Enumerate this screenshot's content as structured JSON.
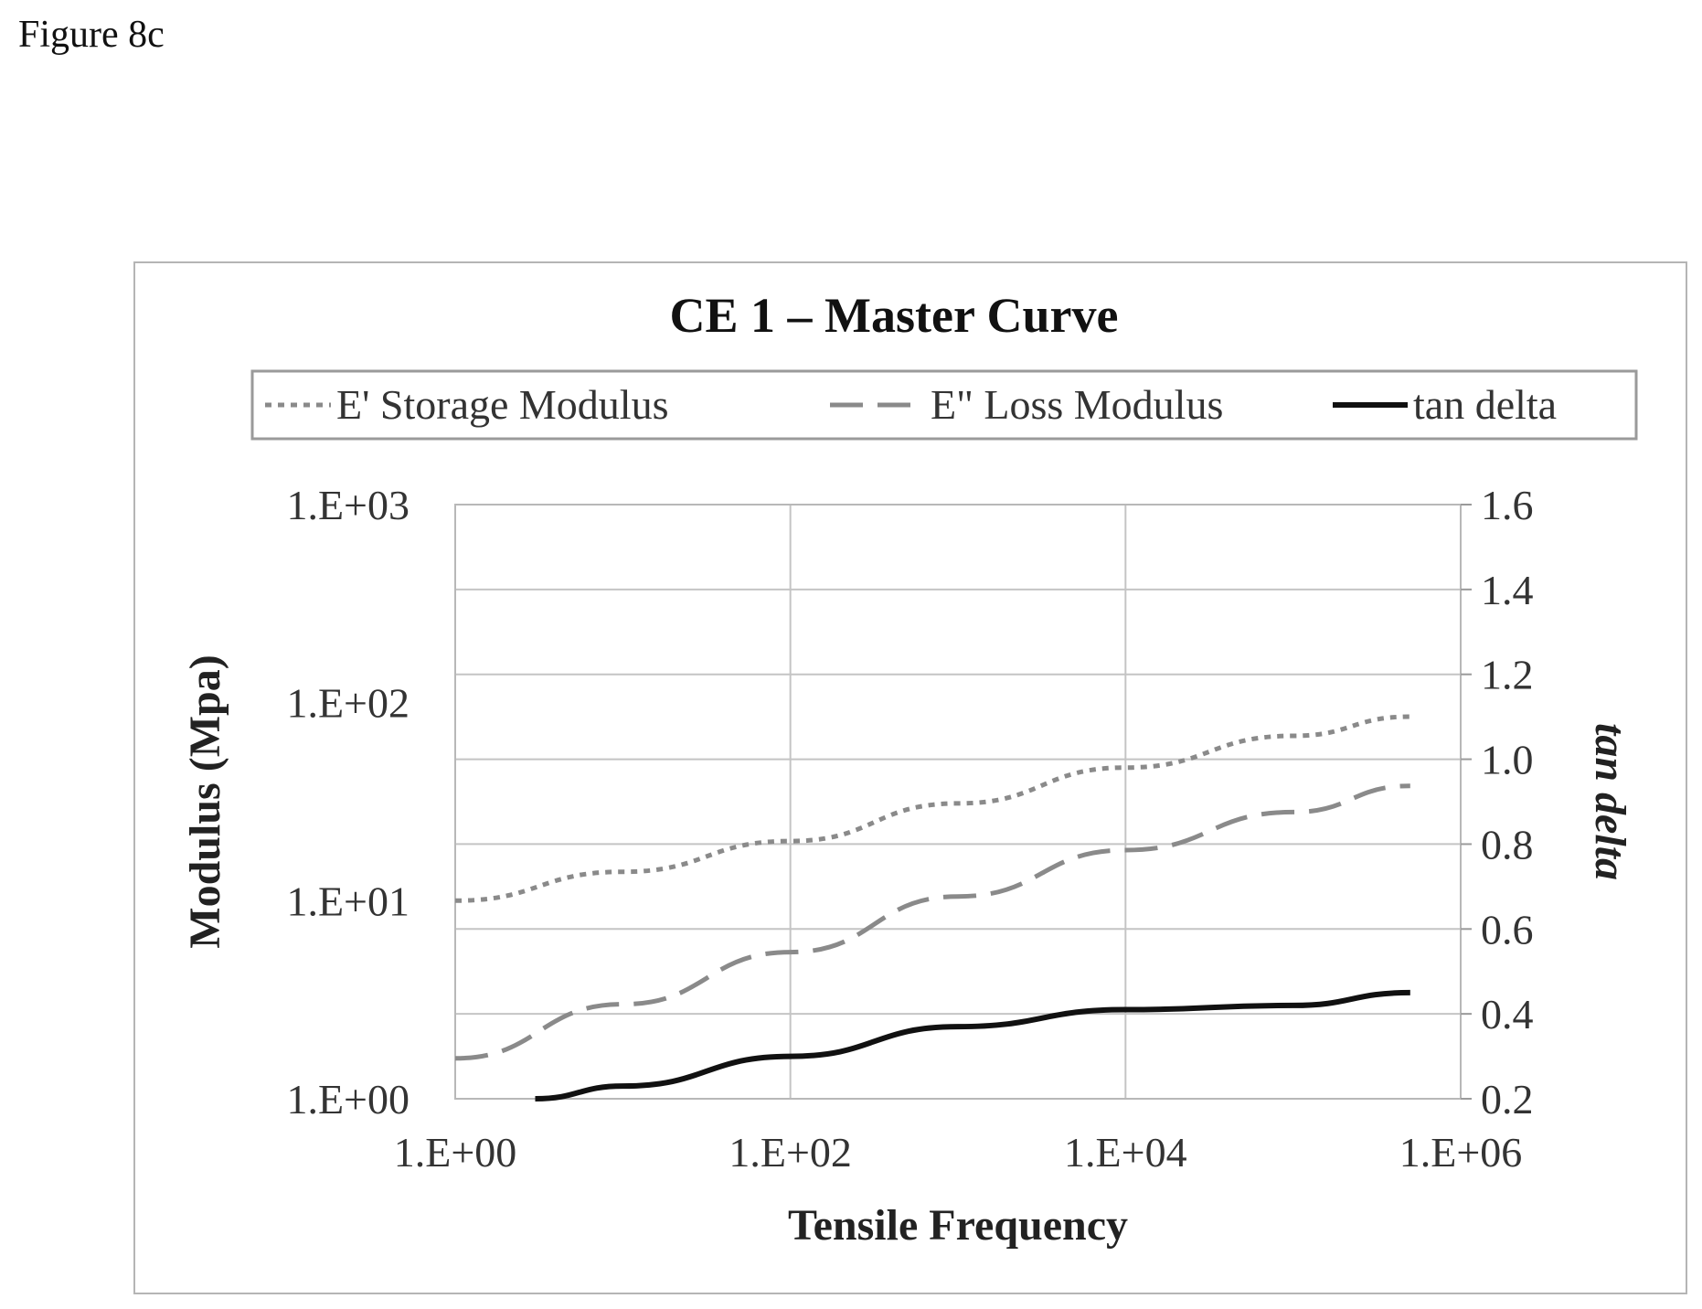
{
  "figure_label": "Figure 8c",
  "chart_data": {
    "type": "line",
    "title": "CE 1 – Master Curve",
    "xlabel": "Tensile Frequency",
    "ylabel": "Modulus (Mpa)",
    "y2label": "tan delta",
    "x_scale": "log",
    "y_scale": "log",
    "xlim": [
      1,
      1000000
    ],
    "ylim": [
      1,
      1000
    ],
    "y2lim": [
      0.2,
      1.6
    ],
    "x_ticks": [
      "1.E+00",
      "1.E+02",
      "1.E+04",
      "1.E+06"
    ],
    "y_ticks": [
      "1.E+00",
      "1.E+01",
      "1.E+02",
      "1.E+03"
    ],
    "y2_ticks": [
      "0.2",
      "0.4",
      "0.6",
      "0.8",
      "1.0",
      "1.2",
      "1.4",
      "1.6"
    ],
    "grid": true,
    "legend_position": "top",
    "series": [
      {
        "name": "E' Storage Modulus",
        "axis": "left",
        "style": "dotted",
        "color": "#8a8a8a",
        "x": [
          1,
          10,
          100,
          1000,
          10000,
          100000,
          500000
        ],
        "y": [
          10,
          14,
          20,
          31,
          47,
          68,
          85
        ]
      },
      {
        "name": "E\" Loss Modulus",
        "axis": "left",
        "style": "dashed",
        "color": "#8a8a8a",
        "x": [
          1,
          10,
          100,
          1000,
          10000,
          100000,
          500000
        ],
        "y": [
          1.6,
          3.0,
          5.5,
          10.5,
          18,
          28,
          38
        ]
      },
      {
        "name": "tan delta",
        "axis": "right",
        "style": "solid",
        "color": "#111111",
        "x": [
          3,
          10,
          100,
          1000,
          10000,
          100000,
          500000
        ],
        "y": [
          0.2,
          0.23,
          0.3,
          0.37,
          0.41,
          0.42,
          0.45
        ]
      }
    ]
  }
}
